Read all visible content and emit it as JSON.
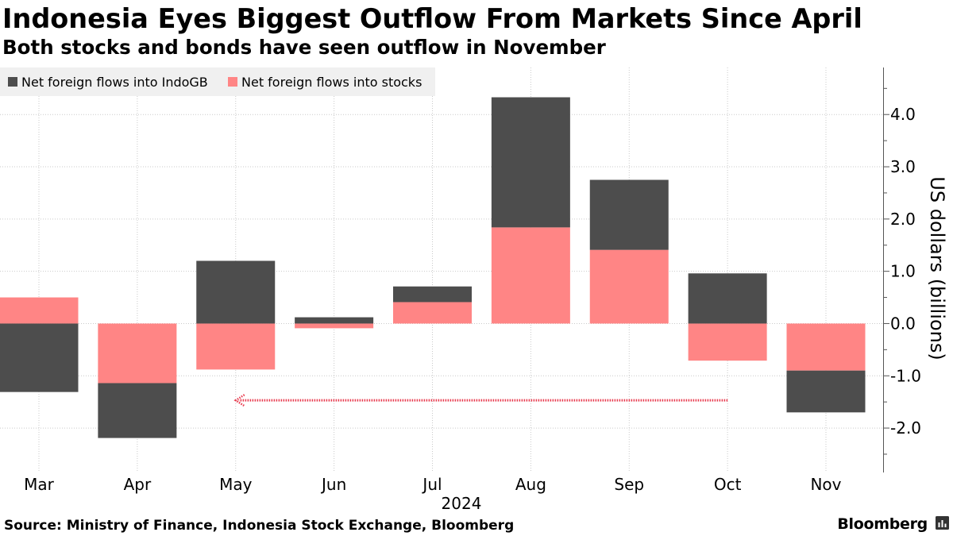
{
  "chart_data": {
    "type": "bar",
    "stacked": true,
    "title": "Indonesia Eyes Biggest Outflow From Markets Since April",
    "subtitle": "Both stocks and bonds have seen outflow in November",
    "categories": [
      "Mar",
      "Apr",
      "May",
      "Jun",
      "Jul",
      "Aug",
      "Sep",
      "Oct",
      "Nov"
    ],
    "x_group_label": "2024",
    "ylabel": "US dollars (billions)",
    "ylim": [
      -2.85,
      4.9
    ],
    "yticks": [
      "4.0",
      "3.0",
      "2.0",
      "1.0",
      "0.0",
      "-1.0",
      "-2.0"
    ],
    "grid": true,
    "legend_position": "top-left",
    "series": [
      {
        "name": "Net foreign flows into IndoGB",
        "color": "#4d4d4d",
        "values": [
          -1.31,
          -1.05,
          1.2,
          0.12,
          0.3,
          2.49,
          1.34,
          0.96,
          -0.8
        ]
      },
      {
        "name": "Net foreign flows into stocks",
        "color": "#ff8585",
        "values": [
          0.5,
          -1.14,
          -0.88,
          -0.09,
          0.41,
          1.84,
          1.41,
          -0.71,
          -0.9
        ]
      }
    ],
    "annotation_arrow": {
      "from_category_index": 7,
      "to_category_index": 2,
      "y": -1.47,
      "color": "#e8394d"
    }
  },
  "footer": {
    "source": "Source: Ministry of Finance, Indonesia Stock Exchange, Bloomberg",
    "brand_text": "Bloomberg",
    "brand_icon": "bloomberg-terminal-icon",
    "brand_icon_color": "#333333"
  },
  "colors": {
    "legend_bg": "#f0f0f0",
    "gridline": "#c9c9c9",
    "axis": "#555555"
  }
}
